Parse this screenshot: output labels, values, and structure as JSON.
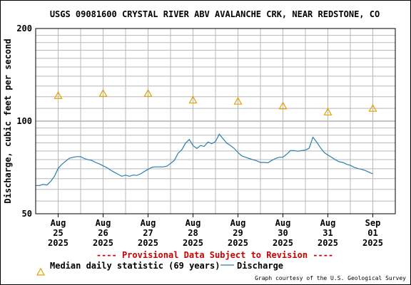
{
  "chart_data": {
    "type": "line",
    "title": "USGS 09081600 CRYSTAL RIVER ABV AVALANCHE CRK, NEAR REDSTONE, CO",
    "ylabel": "Discharge, cubic feet per second",
    "y_scale": "log",
    "ylim": [
      50,
      200
    ],
    "y_ticks": [
      {
        "value": 50,
        "label": "50"
      },
      {
        "value": 100,
        "label": "100"
      },
      {
        "value": 200,
        "label": "200"
      }
    ],
    "y_minor_ticks": [
      55,
      60,
      65,
      70,
      75,
      80,
      85,
      90,
      95,
      110,
      120,
      130,
      140,
      150,
      160,
      170,
      180,
      190
    ],
    "xlim": [
      "2025-08-24T12:00",
      "2025-09-01T12:00"
    ],
    "x_ticks": [
      {
        "date": "2025-08-25",
        "month": "Aug",
        "day": "25",
        "year": "2025"
      },
      {
        "date": "2025-08-26",
        "month": "Aug",
        "day": "26",
        "year": "2025"
      },
      {
        "date": "2025-08-27",
        "month": "Aug",
        "day": "27",
        "year": "2025"
      },
      {
        "date": "2025-08-28",
        "month": "Aug",
        "day": "28",
        "year": "2025"
      },
      {
        "date": "2025-08-29",
        "month": "Aug",
        "day": "29",
        "year": "2025"
      },
      {
        "date": "2025-08-30",
        "month": "Aug",
        "day": "30",
        "year": "2025"
      },
      {
        "date": "2025-08-31",
        "month": "Aug",
        "day": "31",
        "year": "2025"
      },
      {
        "date": "2025-09-01",
        "month": "Sep",
        "day": "01",
        "year": "2025"
      }
    ],
    "series": [
      {
        "name": "Discharge",
        "color": "#2a7fb0",
        "points": [
          [
            "2025-08-24T12:00",
            61.8
          ],
          [
            "2025-08-24T14:00",
            61.8
          ],
          [
            "2025-08-24T16:00",
            62.3
          ],
          [
            "2025-08-24T18:00",
            62.0
          ],
          [
            "2025-08-24T20:00",
            63.7
          ],
          [
            "2025-08-24T22:00",
            66.2
          ],
          [
            "2025-08-25T00:00",
            70.2
          ],
          [
            "2025-08-25T02:00",
            72.4
          ],
          [
            "2025-08-25T04:00",
            74.1
          ],
          [
            "2025-08-25T06:00",
            75.8
          ],
          [
            "2025-08-25T08:00",
            76.3
          ],
          [
            "2025-08-25T10:00",
            76.7
          ],
          [
            "2025-08-25T12:00",
            76.7
          ],
          [
            "2025-08-25T14:00",
            75.6
          ],
          [
            "2025-08-25T16:00",
            74.9
          ],
          [
            "2025-08-25T18:00",
            74.5
          ],
          [
            "2025-08-25T20:00",
            73.4
          ],
          [
            "2025-08-25T22:00",
            72.6
          ],
          [
            "2025-08-26T00:00",
            71.6
          ],
          [
            "2025-08-26T02:00",
            70.6
          ],
          [
            "2025-08-26T04:00",
            69.3
          ],
          [
            "2025-08-26T06:00",
            68.2
          ],
          [
            "2025-08-26T08:00",
            67.2
          ],
          [
            "2025-08-26T10:00",
            66.2
          ],
          [
            "2025-08-26T12:00",
            66.8
          ],
          [
            "2025-08-26T14:00",
            66.2
          ],
          [
            "2025-08-26T16:00",
            66.8
          ],
          [
            "2025-08-26T18:00",
            66.6
          ],
          [
            "2025-08-26T20:00",
            67.4
          ],
          [
            "2025-08-26T22:00",
            68.6
          ],
          [
            "2025-08-27T00:00",
            69.7
          ],
          [
            "2025-08-27T02:00",
            70.8
          ],
          [
            "2025-08-27T04:00",
            71.0
          ],
          [
            "2025-08-27T06:00",
            71.0
          ],
          [
            "2025-08-27T08:00",
            71.0
          ],
          [
            "2025-08-27T10:00",
            71.4
          ],
          [
            "2025-08-27T12:00",
            72.8
          ],
          [
            "2025-08-27T14:00",
            74.5
          ],
          [
            "2025-08-27T16:00",
            78.6
          ],
          [
            "2025-08-27T18:00",
            80.7
          ],
          [
            "2025-08-27T20:00",
            84.8
          ],
          [
            "2025-08-27T22:00",
            87.2
          ],
          [
            "2025-08-28T00:00",
            83.3
          ],
          [
            "2025-08-28T02:00",
            81.5
          ],
          [
            "2025-08-28T04:00",
            83.3
          ],
          [
            "2025-08-28T06:00",
            82.8
          ],
          [
            "2025-08-28T08:00",
            85.5
          ],
          [
            "2025-08-28T10:00",
            84.5
          ],
          [
            "2025-08-28T12:00",
            85.8
          ],
          [
            "2025-08-28T14:00",
            90.7
          ],
          [
            "2025-08-28T16:00",
            87.7
          ],
          [
            "2025-08-28T18:00",
            84.8
          ],
          [
            "2025-08-28T20:00",
            83.3
          ],
          [
            "2025-08-28T22:00",
            81.5
          ],
          [
            "2025-08-29T00:00",
            79.1
          ],
          [
            "2025-08-29T02:00",
            77.1
          ],
          [
            "2025-08-29T04:00",
            76.3
          ],
          [
            "2025-08-29T06:00",
            75.6
          ],
          [
            "2025-08-29T08:00",
            74.9
          ],
          [
            "2025-08-29T10:00",
            74.3
          ],
          [
            "2025-08-29T12:00",
            73.4
          ],
          [
            "2025-08-29T14:00",
            73.4
          ],
          [
            "2025-08-29T16:00",
            73.2
          ],
          [
            "2025-08-29T18:00",
            74.5
          ],
          [
            "2025-08-29T20:00",
            75.6
          ],
          [
            "2025-08-29T22:00",
            76.3
          ],
          [
            "2025-08-30T00:00",
            76.3
          ],
          [
            "2025-08-30T02:00",
            78.1
          ],
          [
            "2025-08-30T04:00",
            80.2
          ],
          [
            "2025-08-30T06:00",
            80.2
          ],
          [
            "2025-08-30T08:00",
            79.8
          ],
          [
            "2025-08-30T10:00",
            80.2
          ],
          [
            "2025-08-30T12:00",
            80.5
          ],
          [
            "2025-08-30T14:00",
            81.7
          ],
          [
            "2025-08-30T16:00",
            88.7
          ],
          [
            "2025-08-30T18:00",
            85.5
          ],
          [
            "2025-08-30T20:00",
            82.0
          ],
          [
            "2025-08-30T22:00",
            79.1
          ],
          [
            "2025-08-31T00:00",
            77.6
          ],
          [
            "2025-08-31T02:00",
            76.3
          ],
          [
            "2025-08-31T04:00",
            74.9
          ],
          [
            "2025-08-31T06:00",
            73.8
          ],
          [
            "2025-08-31T08:00",
            73.4
          ],
          [
            "2025-08-31T10:00",
            72.4
          ],
          [
            "2025-08-31T12:00",
            71.8
          ],
          [
            "2025-08-31T14:00",
            70.8
          ],
          [
            "2025-08-31T16:00",
            70.2
          ],
          [
            "2025-08-31T18:00",
            69.7
          ],
          [
            "2025-08-31T20:00",
            69.1
          ],
          [
            "2025-08-31T22:00",
            68.2
          ],
          [
            "2025-09-01T00:00",
            67.4
          ]
        ]
      },
      {
        "name": "Median daily statistic (69 years)",
        "color": "#e6a000",
        "marker": "triangle",
        "points": [
          [
            "2025-08-25T00:00",
            121
          ],
          [
            "2025-08-26T00:00",
            123
          ],
          [
            "2025-08-27T00:00",
            123
          ],
          [
            "2025-08-28T00:00",
            117
          ],
          [
            "2025-08-29T00:00",
            116
          ],
          [
            "2025-08-30T00:00",
            112
          ],
          [
            "2025-08-31T00:00",
            107
          ],
          [
            "2025-09-01T00:00",
            110
          ]
        ]
      }
    ],
    "grid": true,
    "legend": [
      {
        "label": "Median daily statistic (69 years)",
        "marker": "triangle",
        "color": "#e6a000"
      },
      {
        "label": "Discharge",
        "marker": "line",
        "color": "#2a7fb0"
      }
    ],
    "legend_position": "bottom-left",
    "annotations": {
      "provisional": "---- Provisional Data Subject to Revision ----",
      "credit": "Graph courtesy of the U.S. Geological Survey"
    }
  }
}
